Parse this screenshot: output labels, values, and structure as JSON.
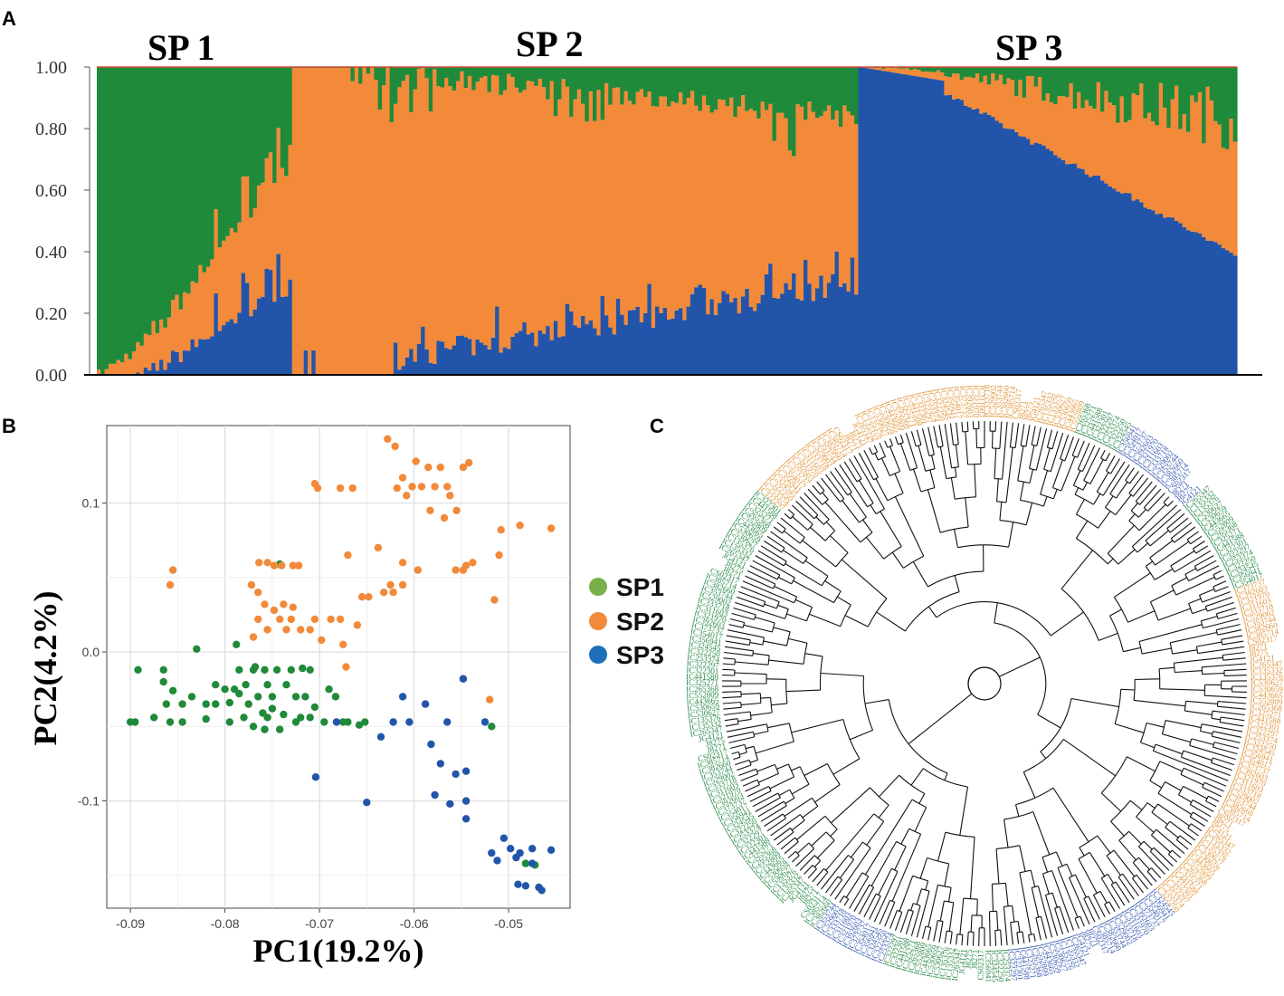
{
  "colors": {
    "sp1": "#1f8a3a",
    "sp2": "#f28a3a",
    "sp3": "#2255aa",
    "sp1_legend": "#78b04a",
    "sp3_legend": "#1c6fb8"
  },
  "panels": {
    "a": "A",
    "b": "B",
    "c": "C"
  },
  "chart_data": [
    {
      "type": "bar",
      "stacked": true,
      "panel": "A",
      "group_titles": [
        "SP 1",
        "SP 2",
        "SP 3"
      ],
      "ylim": [
        0,
        1
      ],
      "ytick_labels": [
        "0.00",
        "0.20",
        "0.40",
        "0.60",
        "0.80",
        "1.00"
      ],
      "n_individuals": [
        50,
        145,
        97
      ],
      "series": [
        {
          "name": "SP1 (green)",
          "color": "#1f8a3a"
        },
        {
          "name": "SP2 (orange)",
          "color": "#f28a3a"
        },
        {
          "name": "SP3 (blue)",
          "color": "#2255aa"
        }
      ],
      "segments": {
        "SP1": {
          "sp2_end": 0.12,
          "sp3_end": 0.3
        },
        "SP2": {
          "sp3_start": 0.0,
          "sp3_end": 0.33,
          "green_end_top": 0.17
        },
        "SP3": {
          "sp3_start": 1.0,
          "sp3_end": 0.38,
          "orange_end_top": 0.18
        }
      }
    },
    {
      "type": "scatter",
      "panel": "B",
      "xlabel": "PC1(19.2%)",
      "ylabel": "PC2(4.2%)",
      "xlim": [
        -0.0925,
        -0.0435
      ],
      "ylim": [
        -0.172,
        0.152
      ],
      "xtick_labels": [
        "-0.09",
        "-0.08",
        "-0.07",
        "-0.06",
        "-0.05"
      ],
      "xticks": [
        -0.09,
        -0.08,
        -0.07,
        -0.06,
        -0.05
      ],
      "ytick_labels": [
        "-0.1",
        "0.0",
        "0.1"
      ],
      "yticks": [
        -0.1,
        0.0,
        0.1
      ],
      "legend": [
        "SP1",
        "SP2",
        "SP3"
      ],
      "series": [
        {
          "name": "SP1",
          "points": [
            [
              -0.09,
              -0.047
            ],
            [
              -0.0895,
              -0.047
            ],
            [
              -0.0892,
              -0.012
            ],
            [
              -0.0875,
              -0.044
            ],
            [
              -0.0865,
              -0.012
            ],
            [
              -0.0865,
              -0.02
            ],
            [
              -0.0855,
              -0.026
            ],
            [
              -0.0845,
              -0.035
            ],
            [
              -0.0862,
              -0.035
            ],
            [
              -0.0858,
              -0.047
            ],
            [
              -0.0845,
              -0.047
            ],
            [
              -0.0835,
              -0.03
            ],
            [
              -0.083,
              0.002
            ],
            [
              -0.082,
              -0.045
            ],
            [
              -0.082,
              -0.035
            ],
            [
              -0.081,
              -0.022
            ],
            [
              -0.081,
              -0.035
            ],
            [
              -0.08,
              -0.025
            ],
            [
              -0.0795,
              -0.047
            ],
            [
              -0.0795,
              -0.034
            ],
            [
              -0.079,
              -0.025
            ],
            [
              -0.0785,
              -0.012
            ],
            [
              -0.0785,
              -0.028
            ],
            [
              -0.078,
              -0.044
            ],
            [
              -0.0778,
              -0.022
            ],
            [
              -0.077,
              -0.012
            ],
            [
              -0.0775,
              -0.035
            ],
            [
              -0.077,
              -0.05
            ],
            [
              -0.0765,
              -0.03
            ],
            [
              -0.076,
              -0.041
            ],
            [
              -0.0758,
              -0.012
            ],
            [
              -0.0758,
              -0.052
            ],
            [
              -0.0755,
              -0.044
            ],
            [
              -0.0755,
              -0.022
            ],
            [
              -0.075,
              -0.038
            ],
            [
              -0.075,
              -0.03
            ],
            [
              -0.0745,
              -0.012
            ],
            [
              -0.0742,
              -0.052
            ],
            [
              -0.0735,
              -0.022
            ],
            [
              -0.0738,
              -0.042
            ],
            [
              -0.073,
              -0.012
            ],
            [
              -0.0725,
              -0.03
            ],
            [
              -0.072,
              -0.044
            ],
            [
              -0.0715,
              -0.03
            ],
            [
              -0.071,
              -0.012
            ],
            [
              -0.071,
              -0.044
            ],
            [
              -0.0705,
              -0.037
            ],
            [
              -0.0695,
              -0.047
            ],
            [
              -0.069,
              -0.025
            ],
            [
              -0.0683,
              -0.03
            ],
            [
              -0.0675,
              -0.047
            ],
            [
              -0.067,
              -0.047
            ],
            [
              -0.0658,
              -0.049
            ],
            [
              -0.0652,
              -0.047
            ],
            [
              -0.0742,
              0.059
            ],
            [
              -0.0768,
              -0.01
            ],
            [
              -0.0718,
              -0.011
            ],
            [
              -0.0725,
              -0.047
            ],
            [
              -0.0518,
              -0.05
            ],
            [
              -0.0482,
              -0.142
            ],
            [
              -0.0472,
              -0.143
            ],
            [
              -0.0788,
              0.005
            ]
          ]
        },
        {
          "name": "SP2",
          "points": [
            [
              -0.0855,
              0.055
            ],
            [
              -0.0858,
              0.045
            ],
            [
              -0.0772,
              0.045
            ],
            [
              -0.0764,
              0.06
            ],
            [
              -0.0755,
              0.06
            ],
            [
              -0.0748,
              0.058
            ],
            [
              -0.074,
              0.058
            ],
            [
              -0.0728,
              0.058
            ],
            [
              -0.0722,
              0.058
            ],
            [
              -0.0765,
              0.04
            ],
            [
              -0.0758,
              0.032
            ],
            [
              -0.0748,
              0.028
            ],
            [
              -0.0755,
              0.015
            ],
            [
              -0.0765,
              0.022
            ],
            [
              -0.077,
              0.01
            ],
            [
              -0.0742,
              0.022
            ],
            [
              -0.0738,
              0.032
            ],
            [
              -0.0735,
              0.015
            ],
            [
              -0.073,
              0.022
            ],
            [
              -0.0728,
              0.03
            ],
            [
              -0.072,
              0.015
            ],
            [
              -0.071,
              0.015
            ],
            [
              -0.0705,
              0.022
            ],
            [
              -0.0698,
              0.008
            ],
            [
              -0.0688,
              0.022
            ],
            [
              -0.0678,
              0.022
            ],
            [
              -0.0675,
              0.005
            ],
            [
              -0.0672,
              -0.01
            ],
            [
              -0.066,
              0.018
            ],
            [
              -0.0655,
              0.037
            ],
            [
              -0.0648,
              0.037
            ],
            [
              -0.0705,
              0.113
            ],
            [
              -0.0702,
              0.11
            ],
            [
              -0.0678,
              0.11
            ],
            [
              -0.0665,
              0.11
            ],
            [
              -0.067,
              0.065
            ],
            [
              -0.0638,
              0.07
            ],
            [
              -0.0628,
              0.143
            ],
            [
              -0.062,
              0.138
            ],
            [
              -0.0618,
              0.11
            ],
            [
              -0.0612,
              0.117
            ],
            [
              -0.0608,
              0.105
            ],
            [
              -0.0602,
              0.111
            ],
            [
              -0.0598,
              0.128
            ],
            [
              -0.0592,
              0.111
            ],
            [
              -0.0585,
              0.124
            ],
            [
              -0.0583,
              0.095
            ],
            [
              -0.0578,
              0.111
            ],
            [
              -0.0572,
              0.124
            ],
            [
              -0.0568,
              0.09
            ],
            [
              -0.0565,
              0.111
            ],
            [
              -0.0562,
              0.105
            ],
            [
              -0.0555,
              0.095
            ],
            [
              -0.0548,
              0.124
            ],
            [
              -0.0542,
              0.127
            ],
            [
              -0.0538,
              0.06
            ],
            [
              -0.0548,
              0.055
            ],
            [
              -0.0556,
              0.055
            ],
            [
              -0.0596,
              0.055
            ],
            [
              -0.0612,
              0.06
            ],
            [
              -0.0612,
              0.045
            ],
            [
              -0.0622,
              0.04
            ],
            [
              -0.0632,
              0.04
            ],
            [
              -0.0625,
              0.045
            ],
            [
              -0.0515,
              0.035
            ],
            [
              -0.0508,
              0.082
            ],
            [
              -0.0488,
              0.085
            ],
            [
              -0.0455,
              0.083
            ],
            [
              -0.051,
              0.065
            ],
            [
              -0.0545,
              0.058
            ],
            [
              -0.0548,
              -0.018
            ],
            [
              -0.052,
              -0.032
            ]
          ]
        },
        {
          "name": "SP3",
          "points": [
            [
              -0.0682,
              -0.047
            ],
            [
              -0.0622,
              -0.047
            ],
            [
              -0.0635,
              -0.057
            ],
            [
              -0.0612,
              -0.03
            ],
            [
              -0.0605,
              -0.047
            ],
            [
              -0.0588,
              -0.035
            ],
            [
              -0.0582,
              -0.062
            ],
            [
              -0.0565,
              -0.047
            ],
            [
              -0.0548,
              -0.018
            ],
            [
              -0.0525,
              -0.047
            ],
            [
              -0.0572,
              -0.075
            ],
            [
              -0.0556,
              -0.082
            ],
            [
              -0.0545,
              -0.08
            ],
            [
              -0.0578,
              -0.096
            ],
            [
              -0.0562,
              -0.102
            ],
            [
              -0.0545,
              -0.1
            ],
            [
              -0.0545,
              -0.112
            ],
            [
              -0.065,
              -0.101
            ],
            [
              -0.0704,
              -0.084
            ],
            [
              -0.0518,
              -0.135
            ],
            [
              -0.0512,
              -0.14
            ],
            [
              -0.0505,
              -0.125
            ],
            [
              -0.0498,
              -0.132
            ],
            [
              -0.0492,
              -0.138
            ],
            [
              -0.049,
              -0.156
            ],
            [
              -0.0482,
              -0.157
            ],
            [
              -0.0475,
              -0.132
            ],
            [
              -0.0468,
              -0.158
            ],
            [
              -0.0455,
              -0.133
            ],
            [
              -0.0475,
              -0.142
            ],
            [
              -0.0488,
              -0.135
            ],
            [
              -0.0465,
              -0.16
            ]
          ]
        }
      ]
    },
    {
      "type": "other",
      "panel": "C",
      "description_type": "circular-dendrogram",
      "clades": [
        {
          "name": "SP1",
          "color": "#2a8a4a"
        },
        {
          "name": "SP2",
          "color": "#e0943a"
        },
        {
          "name": "SP3",
          "color": "#3a5db0"
        }
      ],
      "leaf_labels_visible": [
        "CS02317",
        "J8271",
        "J8275",
        "JG4121",
        "IC265347",
        "IC135332",
        "IC135376",
        "IC530627",
        "IC530659",
        "IC443665",
        "IC552809",
        "IC265368",
        "IC325271",
        "IC441588",
        "IC322301",
        "IC322297",
        "IC253374",
        "IC322250",
        "IC324545",
        "IC356941",
        "IC354017",
        "IC373737",
        "IC392603",
        "IC321970",
        "IC311603",
        "IC333718",
        "IC529002",
        "IC353744",
        "IC382660",
        "IC385714"
      ]
    }
  ]
}
